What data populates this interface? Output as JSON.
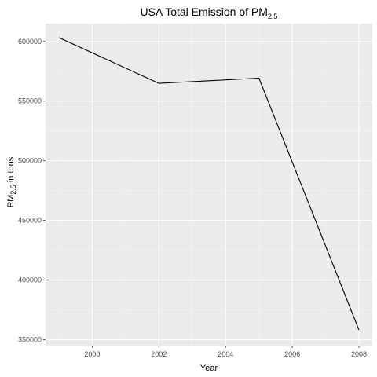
{
  "chart_data": {
    "type": "line",
    "title": "USA Total Emission of PM",
    "title_subscript": "2.5",
    "xlabel": "Year",
    "ylabel": "PM",
    "ylabel_subscript": "2.5",
    "ylabel_suffix": " in tons",
    "x": [
      1999,
      2002,
      2005,
      2008
    ],
    "series": [
      {
        "values": [
          603200,
          564900,
          569200,
          358100
        ]
      }
    ],
    "xlim": [
      1998.6,
      2008.4
    ],
    "ylim": [
      345000,
      615000
    ],
    "x_ticks": [
      2000,
      2002,
      2004,
      2006,
      2008
    ],
    "x_tick_labels": [
      "2000",
      "2002",
      "2004",
      "2006",
      "2008"
    ],
    "y_ticks": [
      350000,
      400000,
      450000,
      500000,
      550000,
      600000
    ],
    "y_tick_labels": [
      "350000",
      "400000",
      "450000",
      "500000",
      "550000",
      "600000"
    ],
    "grid": true,
    "legend": "none",
    "colors": {
      "panel_background": "#ebebeb",
      "grid_major": "#ffffff",
      "grid_minor": "#f5f5f5",
      "line": "#000000",
      "tick_text": "#4d4d4d"
    }
  }
}
